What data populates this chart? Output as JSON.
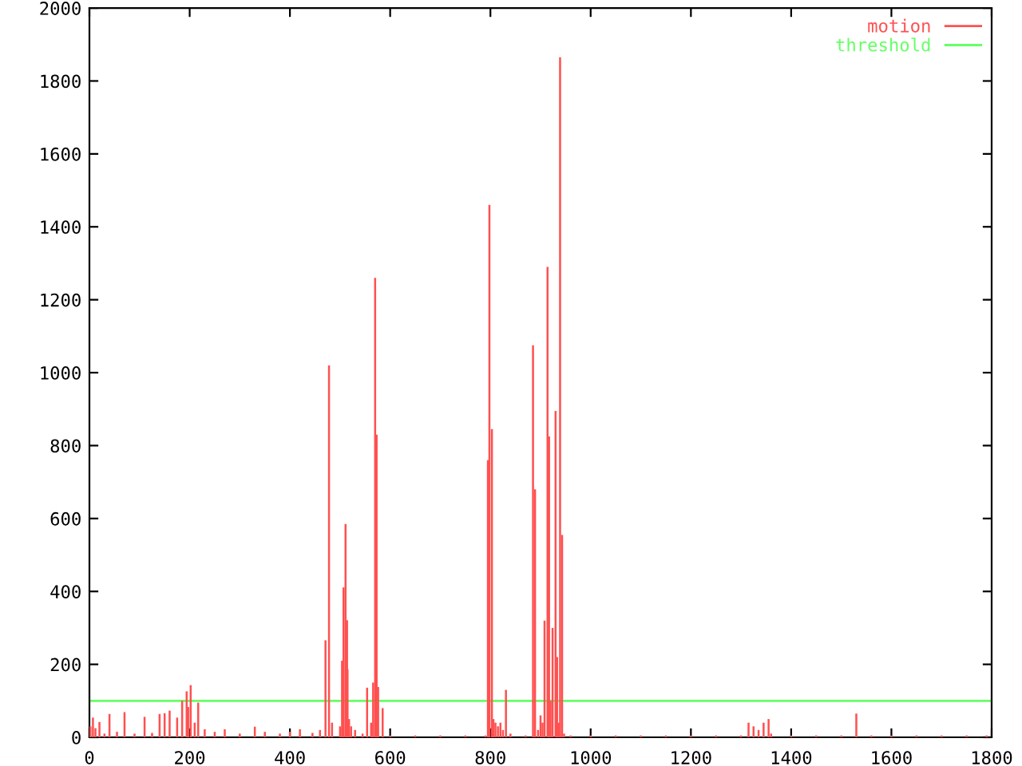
{
  "chart_data": {
    "type": "bar",
    "x": [
      2,
      7,
      12,
      20,
      30,
      40,
      55,
      70,
      90,
      110,
      125,
      140,
      150,
      160,
      175,
      185,
      194,
      197,
      202,
      210,
      217,
      230,
      250,
      270,
      300,
      330,
      350,
      380,
      400,
      420,
      445,
      460,
      471,
      478,
      484,
      500,
      504,
      507,
      511,
      514,
      515,
      518,
      522,
      530,
      545,
      554,
      562,
      566,
      570,
      573,
      576,
      585,
      600,
      650,
      700,
      750,
      790,
      795,
      798,
      803,
      806,
      810,
      815,
      820,
      825,
      831,
      840,
      870,
      885,
      889,
      895,
      900,
      904,
      908,
      914,
      917,
      920,
      924,
      930,
      933,
      936,
      939,
      943,
      947,
      960,
      1000,
      1050,
      1100,
      1150,
      1200,
      1250,
      1300,
      1315,
      1325,
      1335,
      1345,
      1355,
      1360,
      1400,
      1450,
      1500,
      1530,
      1560,
      1600,
      1650,
      1700,
      1750,
      1790
    ],
    "series": [
      {
        "name": "motion",
        "color": "#ff5050",
        "values": [
          30,
          54,
          25,
          42,
          10,
          64,
          15,
          69,
          10,
          56,
          12,
          64,
          66,
          73,
          54,
          100,
          126,
          83,
          143,
          40,
          95,
          22,
          15,
          22,
          10,
          29,
          15,
          10,
          15,
          22,
          12,
          20,
          266,
          1020,
          40,
          30,
          210,
          411,
          585,
          321,
          186,
          50,
          30,
          20,
          10,
          136,
          40,
          150,
          1260,
          830,
          138,
          80,
          5,
          5,
          5,
          5,
          5,
          760,
          1460,
          845,
          50,
          40,
          30,
          40,
          20,
          130,
          10,
          5,
          1075,
          680,
          20,
          60,
          40,
          320,
          1290,
          825,
          100,
          300,
          895,
          220,
          40,
          1865,
          555,
          10,
          5,
          5,
          5,
          5,
          5,
          5,
          5,
          5,
          40,
          30,
          20,
          40,
          50,
          10,
          5,
          5,
          5,
          65,
          5,
          5,
          5,
          5,
          5,
          5
        ]
      }
    ],
    "ref_lines": [
      {
        "axis": "y",
        "value": 100,
        "label": "threshold",
        "color": "#66ff66"
      }
    ],
    "xlim": [
      0,
      1800
    ],
    "xticks": [
      0,
      200,
      400,
      600,
      800,
      1000,
      1200,
      1400,
      1600,
      1800
    ],
    "ylim": [
      0,
      2000
    ],
    "yticks": [
      0,
      200,
      400,
      600,
      800,
      1000,
      1200,
      1400,
      1600,
      1800,
      2000
    ],
    "grid": false,
    "legend": "top right"
  }
}
